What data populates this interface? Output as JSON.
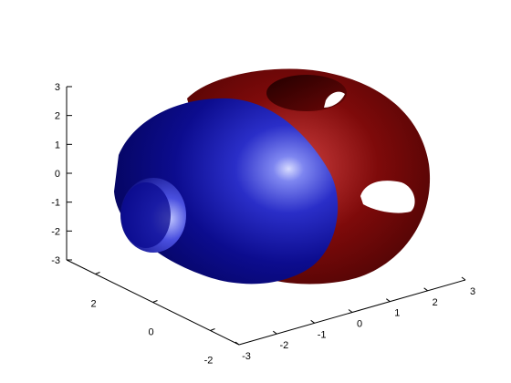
{
  "chart_data": {
    "type": "surface3d",
    "title": "",
    "xlabel": "",
    "ylabel": "",
    "zlabel": "",
    "xlim": [
      -3,
      3
    ],
    "ylim": [
      -3,
      3
    ],
    "zlim": [
      -3,
      3
    ],
    "x_ticks": [
      "-3",
      "-2",
      "-1",
      "0",
      "1",
      "2",
      "3"
    ],
    "y_ticks": [
      "-2",
      "0",
      "2"
    ],
    "z_ticks": [
      "3",
      "2",
      "1",
      "0",
      "-1",
      "-2",
      "-3"
    ],
    "grid": false,
    "series": [
      {
        "shape": "blue-ellipsoid-shell",
        "color": "#0a0a7a",
        "highlight": "#a8b0ff"
      },
      {
        "shape": "red-perforated-ellipsoid-shell",
        "color": "#7a0a0a",
        "highlight": "#ffb0b0"
      }
    ]
  }
}
